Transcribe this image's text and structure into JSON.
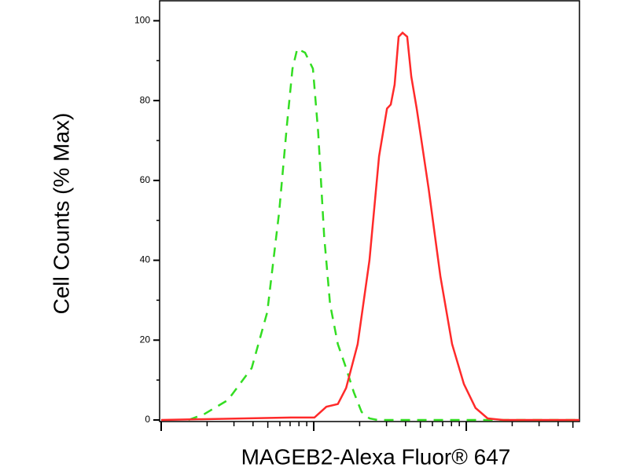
{
  "chart_data": {
    "type": "line",
    "x_label": "MAGEB2-Alexa Fluor® 647",
    "y_label": "Cell Counts (% Max)",
    "x_scale": "log",
    "xlim": [
      1,
      552
    ],
    "xticks": [
      1,
      10,
      100
    ],
    "ylim": [
      0,
      105
    ],
    "yticks": [
      0,
      20,
      40,
      60,
      80,
      100
    ],
    "series": [
      {
        "color": "#33dd22",
        "dash": true,
        "x": [
          1.51,
          1.92,
          2.74,
          3.92,
          4.96,
          5.93,
          6.68,
          7.26,
          7.8,
          8.77,
          9.88,
          10.7,
          11.7,
          12.8,
          14.4,
          16.3,
          18.3,
          20.6,
          23.2,
          26.2,
          109,
          552
        ],
        "values": [
          0,
          1.5,
          5,
          13,
          27,
          52,
          74,
          88,
          93,
          92,
          88,
          72,
          46,
          29,
          19,
          13,
          7,
          2,
          0.4,
          0,
          0,
          0
        ]
      },
      {
        "color": "#ff2a2a",
        "dash": false,
        "x": [
          1,
          7.09,
          10.1,
          12.1,
          14.4,
          16.3,
          19.4,
          23.2,
          26.8,
          30.2,
          32,
          33.9,
          36,
          38.2,
          41,
          43.6,
          47.3,
          56.6,
          67.6,
          80.7,
          96.5,
          115,
          138,
          175,
          552
        ],
        "values": [
          0,
          0.6,
          0.6,
          3.3,
          4,
          8,
          19,
          40,
          66,
          78,
          79,
          84,
          96,
          97,
          96,
          86,
          78,
          58,
          36,
          19,
          9,
          3,
          0.4,
          0,
          0
        ]
      }
    ]
  }
}
